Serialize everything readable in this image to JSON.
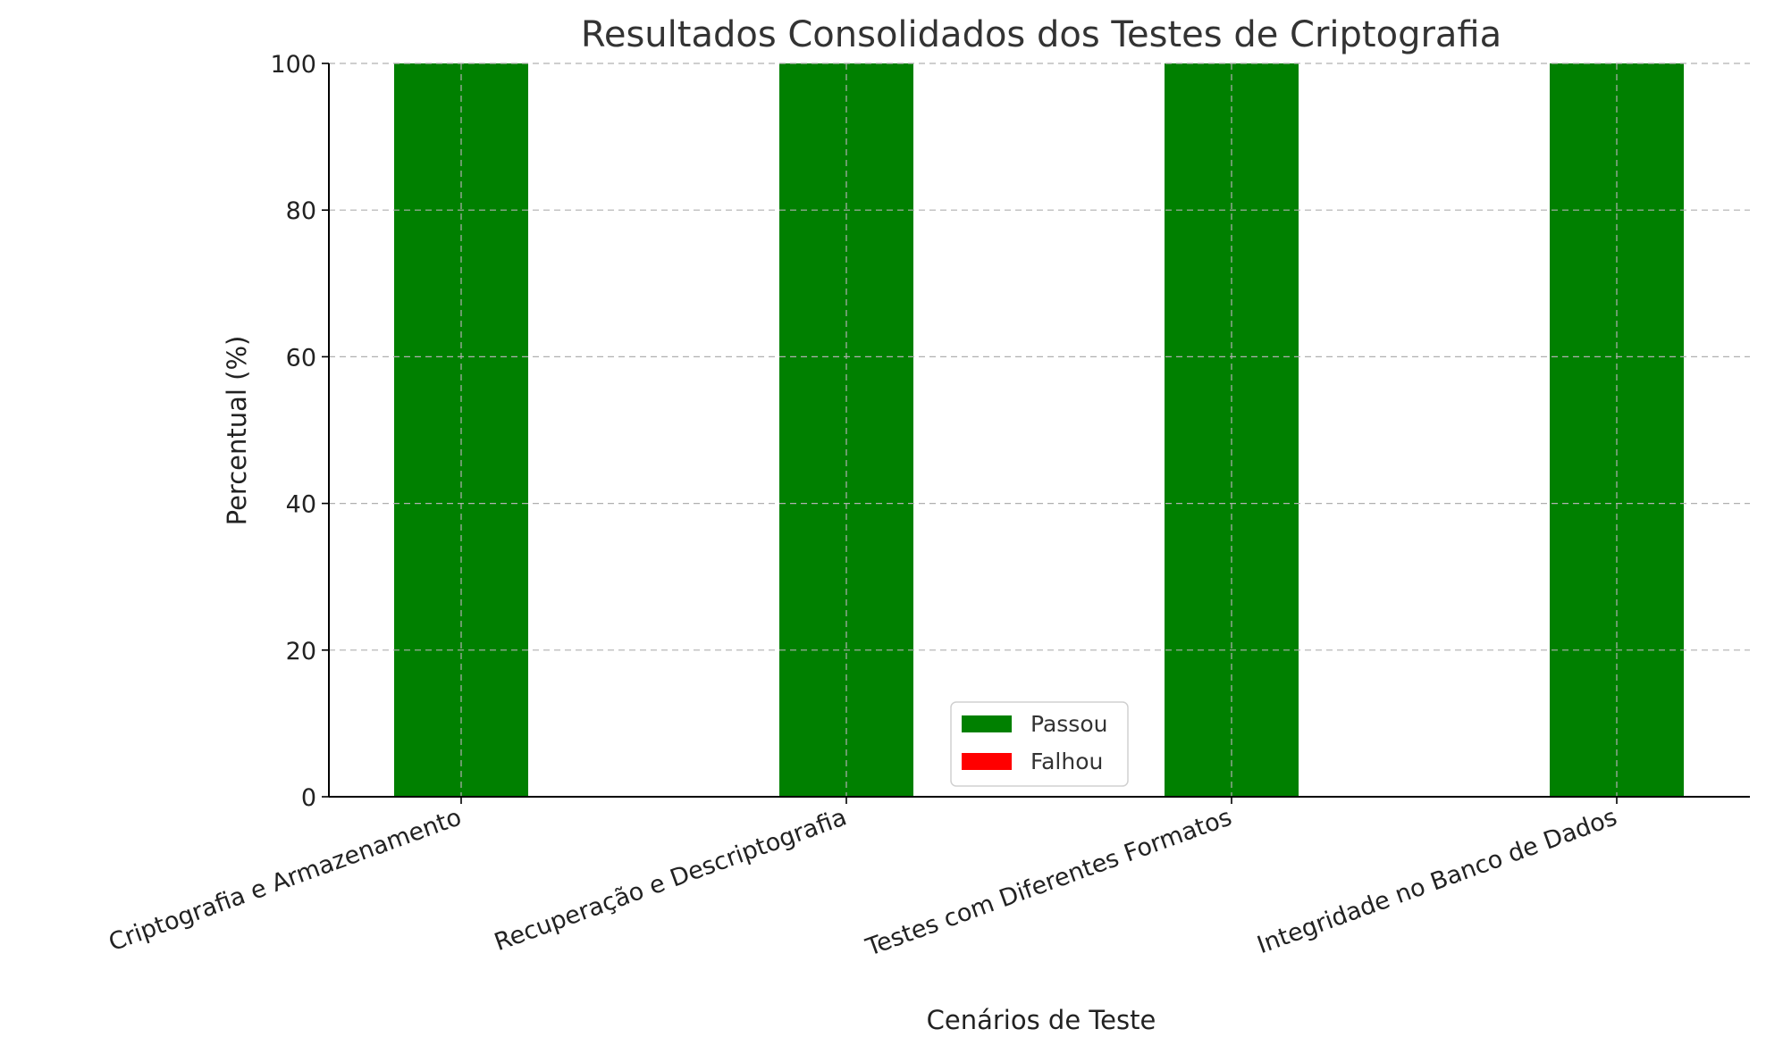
{
  "chart_data": {
    "type": "bar",
    "title": "Resultados Consolidados dos Testes de Criptografia",
    "xlabel": "Cenários de Teste",
    "ylabel": "Percentual (%)",
    "categories": [
      "Criptografia e Armazenamento",
      "Recuperação e Descriptografia",
      "Testes com Diferentes Formatos",
      "Integridade no Banco de Dados"
    ],
    "series": [
      {
        "name": "Passou",
        "values": [
          100,
          100,
          100,
          100
        ],
        "color": "#008000"
      },
      {
        "name": "Falhou",
        "values": [
          0,
          0,
          0,
          0
        ],
        "color": "#ff0000"
      }
    ],
    "ylim": [
      0,
      100
    ],
    "yticks": [
      0,
      20,
      40,
      60,
      80,
      100
    ],
    "grid": true,
    "stacked": true,
    "legend_position": "bottom-center"
  }
}
